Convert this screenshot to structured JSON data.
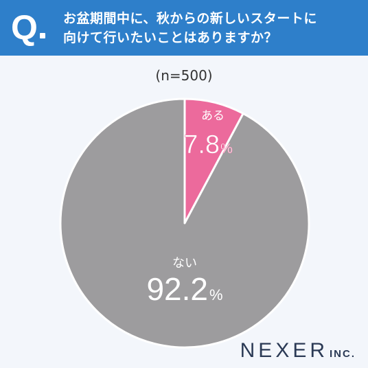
{
  "header": {
    "q_mark": "Q",
    "question_line1": "お盆期間中に、秋からの新しいスタートに",
    "question_line2": "向けて行いたいことはありますか？"
  },
  "sample_label": "(n=500)",
  "brand": {
    "name": "NEXER",
    "suffix": "INC."
  },
  "colors": {
    "header": "#2e7fca",
    "yes": "#ec6a9c",
    "no": "#9d9c9e",
    "background": "#f3f6fb"
  },
  "chart_data": {
    "type": "pie",
    "start": "top",
    "direction": "clockwise",
    "slices": [
      {
        "label": "ある",
        "value": 7.8,
        "display": "7.8",
        "unit": "%",
        "color": "#ec6a9c"
      },
      {
        "label": "ない",
        "value": 92.2,
        "display": "92.2",
        "unit": "%",
        "color": "#9d9c9e"
      }
    ]
  }
}
